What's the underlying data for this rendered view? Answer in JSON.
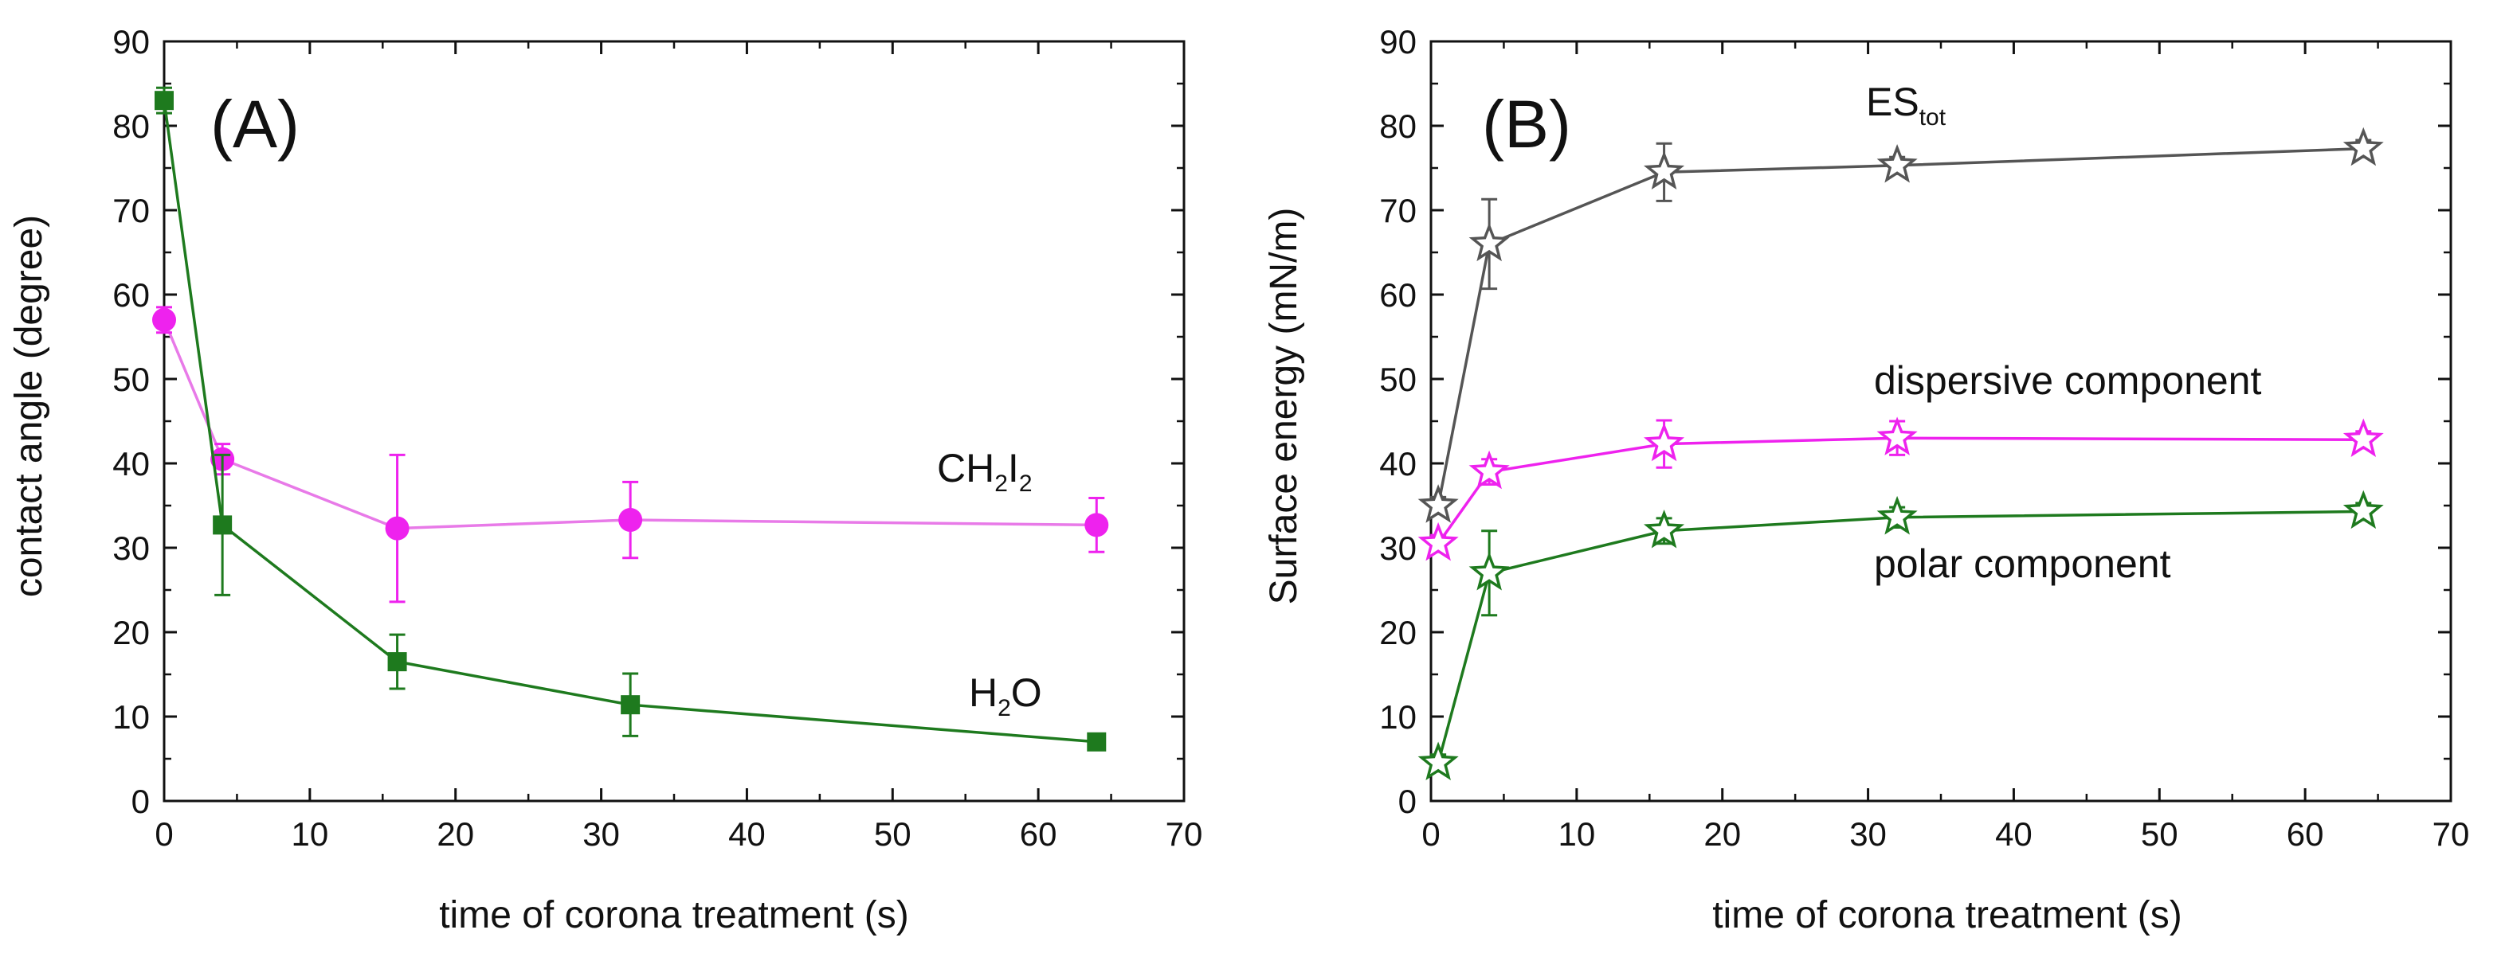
{
  "colors": {
    "water": "#1e7a1e",
    "diiodomethane": "#ee22ee",
    "diiodomethane_line": "#e87ae8",
    "total": "#555555",
    "axis": "#111111"
  },
  "chart_data": [
    {
      "type": "line",
      "panel_label": "(A)",
      "xlabel": "time of corona treatment (s)",
      "ylabel": "contact angle (degree)",
      "xlim": [
        0,
        70
      ],
      "ylim": [
        0,
        90
      ],
      "xticks": [
        0,
        10,
        20,
        30,
        40,
        50,
        60,
        70
      ],
      "yticks": [
        0,
        10,
        20,
        30,
        40,
        50,
        60,
        70,
        80,
        90
      ],
      "grid": false,
      "series": [
        {
          "label_main": "CH",
          "label_sub1": "2",
          "label_mid": "I",
          "label_sub2": "2",
          "marker": "circle",
          "color_key": "diiodomethane",
          "x": [
            0,
            4,
            16,
            32,
            64
          ],
          "y": [
            57,
            40.5,
            32.3,
            33.3,
            32.7
          ],
          "err": [
            1.5,
            1.8,
            8.7,
            4.5,
            3.2
          ]
        },
        {
          "label_main": "H",
          "label_sub1": "2",
          "label_mid": "O",
          "label_sub2": "",
          "marker": "square",
          "color_key": "water",
          "x": [
            0,
            4,
            16,
            32,
            64
          ],
          "y": [
            83,
            32.7,
            16.5,
            11.4,
            7.0
          ],
          "err": [
            1.5,
            8.3,
            3.2,
            3.7,
            0.7
          ]
        }
      ]
    },
    {
      "type": "line",
      "panel_label": "(B)",
      "xlabel": "time of corona treatment (s)",
      "ylabel": "Surface energy (mN/m)",
      "xlim": [
        0,
        70
      ],
      "ylim": [
        0,
        90
      ],
      "xticks": [
        0,
        10,
        20,
        30,
        40,
        50,
        60,
        70
      ],
      "yticks": [
        0,
        10,
        20,
        30,
        40,
        50,
        60,
        70,
        80,
        90
      ],
      "grid": false,
      "series": [
        {
          "label_main": "ES",
          "label_sub1": "tot",
          "marker": "star",
          "color_key": "total",
          "x": [
            0.5,
            4,
            16,
            32,
            64
          ],
          "y": [
            35,
            66,
            74.5,
            75.3,
            77.3
          ],
          "err": [
            1.0,
            5.3,
            3.4,
            1.0,
            1.0
          ]
        },
        {
          "label_main": "dispersive component",
          "marker": "star",
          "color_key": "diiodomethane",
          "x": [
            0.5,
            4,
            16,
            32,
            64
          ],
          "y": [
            30.5,
            39,
            42.3,
            43.0,
            42.8
          ],
          "err": [
            1.0,
            1.5,
            2.8,
            2.0,
            1.0
          ]
        },
        {
          "label_main": "polar component",
          "marker": "star",
          "color_key": "water",
          "x": [
            0.5,
            4,
            16,
            32,
            64
          ],
          "y": [
            4.5,
            27,
            32,
            33.6,
            34.3
          ],
          "err": [
            1.0,
            5.0,
            1.5,
            1.2,
            1.0
          ]
        }
      ]
    }
  ]
}
